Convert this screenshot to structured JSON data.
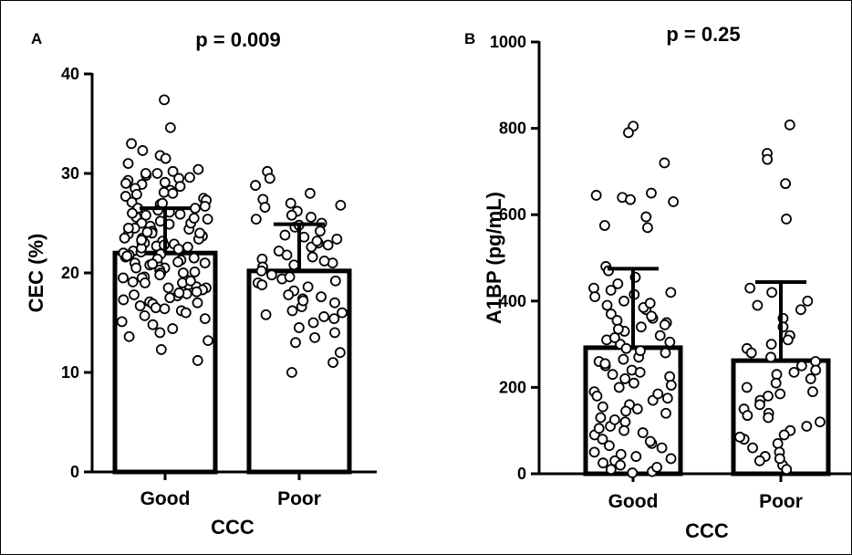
{
  "chart_data": [
    {
      "panel": "A",
      "type": "bar",
      "title": "p = 0.009",
      "xlabel": "CCC",
      "ylabel": "CEC (%)",
      "categories": [
        "Good",
        "Poor"
      ],
      "ylim": [
        0,
        40
      ],
      "yticks": [
        0,
        10,
        20,
        30,
        40
      ],
      "means": [
        22.0,
        20.2
      ],
      "error_upper": [
        26.5,
        24.9
      ],
      "points": [
        [
          37.4,
          34.6,
          33.0,
          32.3,
          31.8,
          31.5,
          31.0,
          30.4,
          30.2,
          30.0,
          29.8,
          29.6,
          29.5,
          29.3,
          29.1,
          28.9,
          28.7,
          28.5,
          28.3,
          28.1,
          27.9,
          27.7,
          27.5,
          27.3,
          27.1,
          26.9,
          26.7,
          26.5,
          26.3,
          26.1,
          25.9,
          25.8,
          25.6,
          25.4,
          25.2,
          25.0,
          24.9,
          24.7,
          24.5,
          24.4,
          24.2,
          24.0,
          23.9,
          23.7,
          23.5,
          23.4,
          23.2,
          23.0,
          22.9,
          22.7,
          22.6,
          22.4,
          22.2,
          22.1,
          21.9,
          21.8,
          21.6,
          21.4,
          21.3,
          21.1,
          21.0,
          20.8,
          20.6,
          20.5,
          20.3,
          20.1,
          20.0,
          19.8,
          19.6,
          19.5,
          19.3,
          19.1,
          19.0,
          18.8,
          18.6,
          18.5,
          18.3,
          18.1,
          17.9,
          17.7,
          17.5,
          17.3,
          17.1,
          16.9,
          16.7,
          16.5,
          16.2,
          16.0,
          15.7,
          15.4,
          15.1,
          14.8,
          14.4,
          14.0,
          13.6,
          13.2,
          12.3,
          11.2,
          28.0,
          27.0,
          26.0,
          25.0,
          24.0,
          23.0,
          22.0,
          21.0,
          20.0,
          19.0,
          18.0,
          17.0,
          22.5,
          21.5,
          20.5,
          23.5,
          24.5,
          19.5,
          18.5,
          25.5,
          26.5,
          17.8,
          16.4,
          29.0,
          30.0,
          22.8,
          21.7,
          20.9,
          23.3,
          24.1,
          19.2
        ],
        [
          30.2,
          29.5,
          28.8,
          28.0,
          27.4,
          27.0,
          26.6,
          26.2,
          25.8,
          25.4,
          25.0,
          24.6,
          24.2,
          23.8,
          23.4,
          23.0,
          22.6,
          22.2,
          21.8,
          21.4,
          21.0,
          20.6,
          20.2,
          19.8,
          19.4,
          19.0,
          18.6,
          18.2,
          17.8,
          17.4,
          17.0,
          16.6,
          16.2,
          15.8,
          15.4,
          15.0,
          14.5,
          14.0,
          13.5,
          13.0,
          12.0,
          11.0,
          10.0,
          24.8,
          23.2,
          21.2,
          19.2,
          17.2,
          16.0,
          25.6,
          22.8,
          20.8,
          18.8,
          26.8,
          23.6,
          21.6,
          19.6,
          17.6,
          15.6
        ]
      ]
    },
    {
      "panel": "B",
      "type": "bar",
      "title": "p = 0.25",
      "xlabel": "CCC",
      "ylabel": "A1BP (pg/mL)",
      "categories": [
        "Good",
        "Poor"
      ],
      "ylim": [
        0,
        1000
      ],
      "yticks": [
        0,
        200,
        400,
        600,
        800,
        1000
      ],
      "means": [
        292,
        262
      ],
      "error_upper": [
        475,
        444
      ],
      "points": [
        [
          805,
          790,
          720,
          650,
          645,
          640,
          635,
          630,
          595,
          575,
          570,
          480,
          470,
          455,
          440,
          430,
          420,
          415,
          410,
          400,
          390,
          380,
          370,
          360,
          355,
          350,
          340,
          330,
          320,
          310,
          300,
          290,
          280,
          270,
          260,
          250,
          240,
          230,
          220,
          210,
          200,
          190,
          180,
          170,
          160,
          150,
          140,
          130,
          120,
          110,
          100,
          90,
          80,
          70,
          60,
          50,
          40,
          30,
          20,
          10,
          5,
          2,
          425,
          385,
          345,
          305,
          265,
          225,
          185,
          145,
          105,
          65,
          25,
          365,
          285,
          205,
          125,
          45,
          335,
          255,
          175,
          95,
          15,
          395,
          315,
          235,
          155,
          75,
          35
        ],
        [
          808,
          742,
          728,
          672,
          590,
          430,
          420,
          400,
          380,
          360,
          340,
          320,
          300,
          290,
          280,
          270,
          260,
          250,
          240,
          230,
          220,
          210,
          200,
          190,
          180,
          170,
          160,
          150,
          140,
          130,
          120,
          110,
          100,
          90,
          80,
          70,
          60,
          50,
          40,
          30,
          20,
          10,
          390,
          310,
          235,
          185,
          135,
          85,
          35
        ]
      ]
    }
  ]
}
